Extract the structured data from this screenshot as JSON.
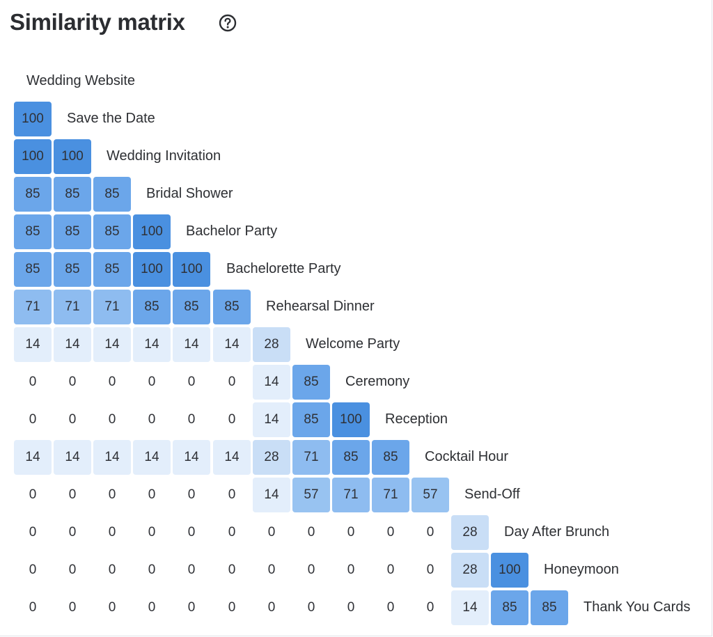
{
  "header": {
    "title": "Similarity matrix",
    "help_icon": "help-circle-icon"
  },
  "matrix": {
    "top_label": "Wedding Website",
    "colors": {
      "v100": "#4a90e0",
      "v85": "#6ba6ea",
      "v71": "#8ebcf0",
      "v57": "#98c3f1",
      "v28": "#c9def6",
      "v14": "#e3eefb"
    },
    "rows": [
      {
        "label": "Save the Date",
        "values": [
          100
        ]
      },
      {
        "label": "Wedding Invitation",
        "values": [
          100,
          100
        ]
      },
      {
        "label": "Bridal Shower",
        "values": [
          85,
          85,
          85
        ]
      },
      {
        "label": "Bachelor Party",
        "values": [
          85,
          85,
          85,
          100
        ]
      },
      {
        "label": "Bachelorette Party",
        "values": [
          85,
          85,
          85,
          100,
          100
        ]
      },
      {
        "label": "Rehearsal Dinner",
        "values": [
          71,
          71,
          71,
          85,
          85,
          85
        ]
      },
      {
        "label": "Welcome Party",
        "values": [
          14,
          14,
          14,
          14,
          14,
          14,
          28
        ]
      },
      {
        "label": "Ceremony",
        "values": [
          0,
          0,
          0,
          0,
          0,
          0,
          14,
          85
        ]
      },
      {
        "label": "Reception",
        "values": [
          0,
          0,
          0,
          0,
          0,
          0,
          14,
          85,
          100
        ]
      },
      {
        "label": "Cocktail Hour",
        "values": [
          14,
          14,
          14,
          14,
          14,
          14,
          28,
          71,
          85,
          85
        ]
      },
      {
        "label": "Send-Off",
        "values": [
          0,
          0,
          0,
          0,
          0,
          0,
          14,
          57,
          71,
          71,
          57
        ]
      },
      {
        "label": "Day After Brunch",
        "values": [
          0,
          0,
          0,
          0,
          0,
          0,
          0,
          0,
          0,
          0,
          0,
          28
        ]
      },
      {
        "label": "Honeymoon",
        "values": [
          0,
          0,
          0,
          0,
          0,
          0,
          0,
          0,
          0,
          0,
          0,
          28,
          100
        ]
      },
      {
        "label": "Thank You Cards",
        "values": [
          0,
          0,
          0,
          0,
          0,
          0,
          0,
          0,
          0,
          0,
          0,
          14,
          85,
          85
        ]
      }
    ]
  }
}
